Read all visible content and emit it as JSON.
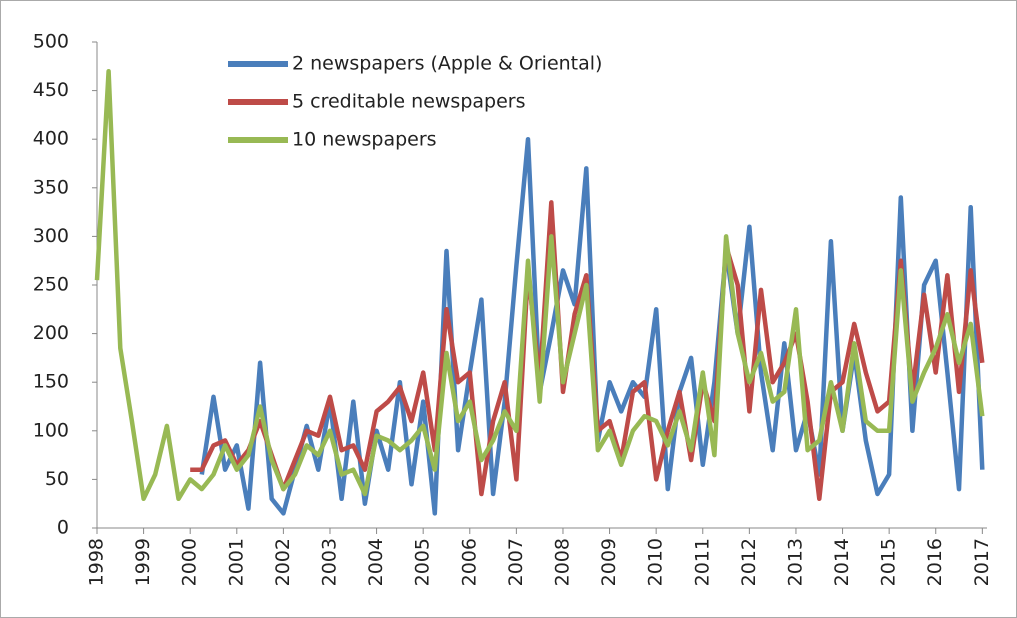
{
  "chart_data": {
    "type": "line",
    "x": [
      1998,
      1998.25,
      1998.5,
      1998.75,
      1999,
      1999.25,
      1999.5,
      1999.75,
      2000,
      2000.25,
      2000.5,
      2000.75,
      2001,
      2001.25,
      2001.5,
      2001.75,
      2002,
      2002.25,
      2002.5,
      2002.75,
      2003,
      2003.25,
      2003.5,
      2003.75,
      2004,
      2004.25,
      2004.5,
      2004.75,
      2005,
      2005.25,
      2005.5,
      2005.75,
      2006,
      2006.25,
      2006.5,
      2006.75,
      2007,
      2007.25,
      2007.5,
      2007.75,
      2008,
      2008.25,
      2008.5,
      2008.75,
      2009,
      2009.25,
      2009.5,
      2009.75,
      2010,
      2010.25,
      2010.5,
      2010.75,
      2011,
      2011.25,
      2011.5,
      2011.75,
      2012,
      2012.25,
      2012.5,
      2012.75,
      2013,
      2013.25,
      2013.5,
      2013.75,
      2014,
      2014.25,
      2014.5,
      2014.75,
      2015,
      2015.25,
      2015.5,
      2015.75,
      2016,
      2016.25,
      2016.5,
      2016.75,
      2017
    ],
    "series": [
      {
        "name": "2 newspapers (Apple & Oriental)",
        "color": "#4a7ebb",
        "values": [
          null,
          null,
          null,
          null,
          null,
          null,
          null,
          null,
          null,
          55,
          135,
          60,
          85,
          20,
          170,
          30,
          15,
          60,
          105,
          60,
          130,
          30,
          130,
          25,
          100,
          60,
          150,
          45,
          130,
          15,
          285,
          80,
          160,
          235,
          35,
          130,
          270,
          400,
          140,
          200,
          265,
          230,
          370,
          90,
          150,
          120,
          150,
          135,
          225,
          40,
          140,
          175,
          65,
          150,
          285,
          200,
          310,
          160,
          80,
          190,
          80,
          120,
          55,
          295,
          100,
          180,
          90,
          35,
          55,
          340,
          100,
          250,
          275,
          160,
          40,
          330,
          60
        ]
      },
      {
        "name": "5 creditable newspapers",
        "color": "#be4b48",
        "values": [
          null,
          null,
          null,
          null,
          null,
          null,
          null,
          null,
          60,
          60,
          85,
          90,
          65,
          80,
          110,
          75,
          40,
          70,
          100,
          95,
          135,
          80,
          85,
          60,
          120,
          130,
          145,
          110,
          160,
          80,
          225,
          150,
          160,
          35,
          110,
          150,
          50,
          265,
          150,
          335,
          140,
          220,
          260,
          100,
          110,
          70,
          140,
          150,
          50,
          100,
          140,
          70,
          150,
          110,
          290,
          250,
          120,
          245,
          150,
          170,
          200,
          130,
          30,
          140,
          150,
          210,
          160,
          120,
          130,
          275,
          140,
          240,
          160,
          260,
          140,
          265,
          170
        ]
      },
      {
        "name": "10 newspapers",
        "color": "#98b954",
        "values": [
          255,
          470,
          185,
          110,
          30,
          55,
          105,
          30,
          50,
          40,
          55,
          85,
          60,
          75,
          125,
          70,
          40,
          55,
          85,
          75,
          100,
          55,
          60,
          35,
          95,
          90,
          80,
          90,
          105,
          60,
          180,
          110,
          130,
          70,
          90,
          120,
          100,
          275,
          130,
          300,
          150,
          200,
          250,
          80,
          100,
          65,
          100,
          115,
          110,
          85,
          120,
          80,
          160,
          75,
          300,
          200,
          150,
          180,
          130,
          140,
          225,
          80,
          90,
          150,
          100,
          190,
          110,
          100,
          100,
          265,
          130,
          160,
          185,
          220,
          170,
          210,
          115
        ]
      }
    ],
    "xlim": [
      1998,
      2017.1
    ],
    "xticks": [
      1998,
      1999,
      2000,
      2001,
      2002,
      2003,
      2004,
      2005,
      2006,
      2007,
      2008,
      2009,
      2010,
      2011,
      2012,
      2013,
      2014,
      2015,
      2016,
      2017
    ],
    "ylim": [
      0,
      500
    ],
    "yticks": [
      0,
      50,
      100,
      150,
      200,
      250,
      300,
      350,
      400,
      450,
      500
    ],
    "legend": "top"
  }
}
